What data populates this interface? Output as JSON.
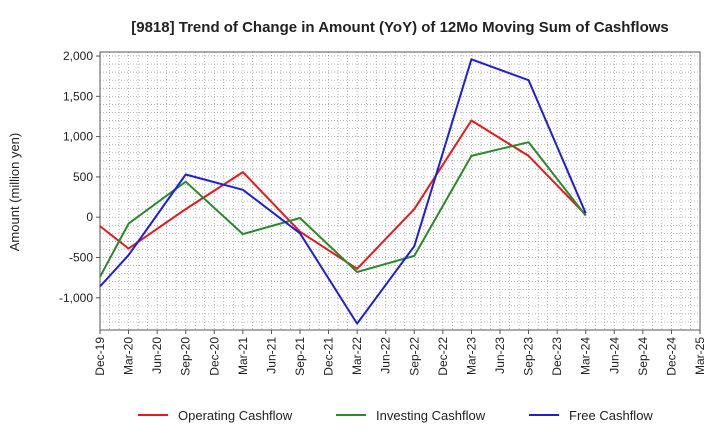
{
  "chart_data": {
    "type": "line",
    "title": "[9818]  Trend of Change in Amount (YoY) of 12Mo Moving Sum of Cashflows",
    "xlabel": "",
    "ylabel": "Amount (million yen)",
    "ylim": [
      -1400,
      2050
    ],
    "yticks": [
      2000,
      1500,
      1000,
      500,
      0,
      -500,
      -1000
    ],
    "ytick_labels": [
      "2,000",
      "1,500",
      "1,000",
      "500",
      "0",
      "-500",
      "-1,000"
    ],
    "categories": [
      "Dec-19",
      "Mar-20",
      "Jun-20",
      "Sep-20",
      "Dec-20",
      "Mar-21",
      "Jun-21",
      "Sep-21",
      "Dec-21",
      "Mar-22",
      "Jun-22",
      "Sep-22",
      "Dec-22",
      "Mar-23",
      "Jun-23",
      "Sep-23",
      "Dec-23",
      "Mar-24",
      "Jun-24",
      "Sep-24",
      "Dec-24",
      "Mar-25"
    ],
    "grid": true,
    "legend": "bottom",
    "series": [
      {
        "name": "Operating Cashflow",
        "color": "#e41a1c",
        "values": [
          -110,
          -390,
          null,
          100,
          null,
          560,
          null,
          -180,
          null,
          -640,
          null,
          100,
          null,
          1200,
          null,
          760,
          null,
          30,
          null,
          null,
          null,
          null
        ]
      },
      {
        "name": "Investing Cashflow",
        "color": "#2a8a2a",
        "values": [
          -740,
          -80,
          null,
          440,
          null,
          -210,
          null,
          -10,
          null,
          -680,
          null,
          -480,
          null,
          760,
          null,
          930,
          null,
          20,
          null,
          null,
          null,
          null
        ]
      },
      {
        "name": "Free Cashflow",
        "color": "#1f1fd6",
        "values": [
          -860,
          -470,
          null,
          530,
          null,
          340,
          null,
          -200,
          null,
          -1320,
          null,
          -360,
          null,
          1960,
          null,
          1700,
          null,
          50,
          null,
          null,
          null,
          null
        ]
      }
    ]
  }
}
